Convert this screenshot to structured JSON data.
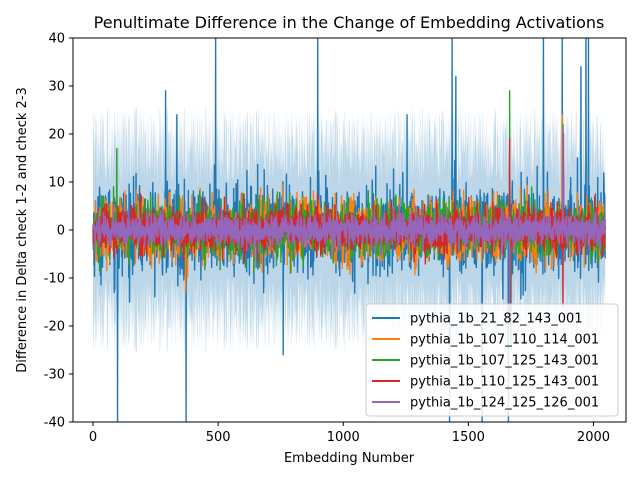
{
  "chart_data": {
    "type": "line",
    "title": "Penultimate Difference in the Change of Embedding Activations",
    "xlabel": "Embedding Number",
    "ylabel": "Difference in Delta check 1-2 and check 2-3",
    "xlim": [
      -80,
      2130
    ],
    "ylim": [
      -40,
      40
    ],
    "xticks": [
      0,
      500,
      1000,
      1500,
      2000
    ],
    "yticks": [
      -40,
      -30,
      -20,
      -10,
      0,
      10,
      20,
      30,
      40
    ],
    "n_points": 2048,
    "legend_position": "lower-right",
    "band": {
      "series": "pythia_1b_21_82_143_001",
      "lower_scale": 2.6,
      "upper_scale": 2.6,
      "color": "#1f77b4",
      "opacity": 0.3
    },
    "series": [
      {
        "name": "pythia_1b_21_82_143_001",
        "color": "#1f77b4",
        "spread": 10,
        "spikes": [
          [
            98,
            -40
          ],
          [
            290,
            29
          ],
          [
            335,
            24
          ],
          [
            372,
            -40
          ],
          [
            490,
            40
          ],
          [
            760,
            -26
          ],
          [
            898,
            40
          ],
          [
            1255,
            24
          ],
          [
            1425,
            -40
          ],
          [
            1435,
            40
          ],
          [
            1450,
            32
          ],
          [
            1555,
            -40
          ],
          [
            1660,
            -40
          ],
          [
            1800,
            40
          ],
          [
            1875,
            40
          ],
          [
            1950,
            34
          ],
          [
            1970,
            40
          ],
          [
            1980,
            40
          ]
        ]
      },
      {
        "name": "pythia_1b_107_110_114_001",
        "color": "#ff7f0e",
        "spread": 7,
        "spikes": [
          [
            370,
            -13
          ],
          [
            1875,
            24
          ]
        ]
      },
      {
        "name": "pythia_1b_107_125_143_001",
        "color": "#2ca02c",
        "spread": 6,
        "spikes": [
          [
            95,
            17
          ],
          [
            1665,
            29
          ],
          [
            1670,
            -25
          ],
          [
            1878,
            22
          ],
          [
            1990,
            -7
          ]
        ]
      },
      {
        "name": "pythia_1b_110_125_143_001",
        "color": "#d62728",
        "spread": 5,
        "spikes": [
          [
            1665,
            19
          ],
          [
            1668,
            -20
          ],
          [
            1878,
            -16
          ],
          [
            1880,
            20
          ]
        ]
      },
      {
        "name": "pythia_1b_124_125_126_001",
        "color": "#9467bd",
        "spread": 3.5,
        "spikes": [
          [
            1665,
            -18
          ],
          [
            1878,
            21
          ]
        ]
      }
    ]
  }
}
